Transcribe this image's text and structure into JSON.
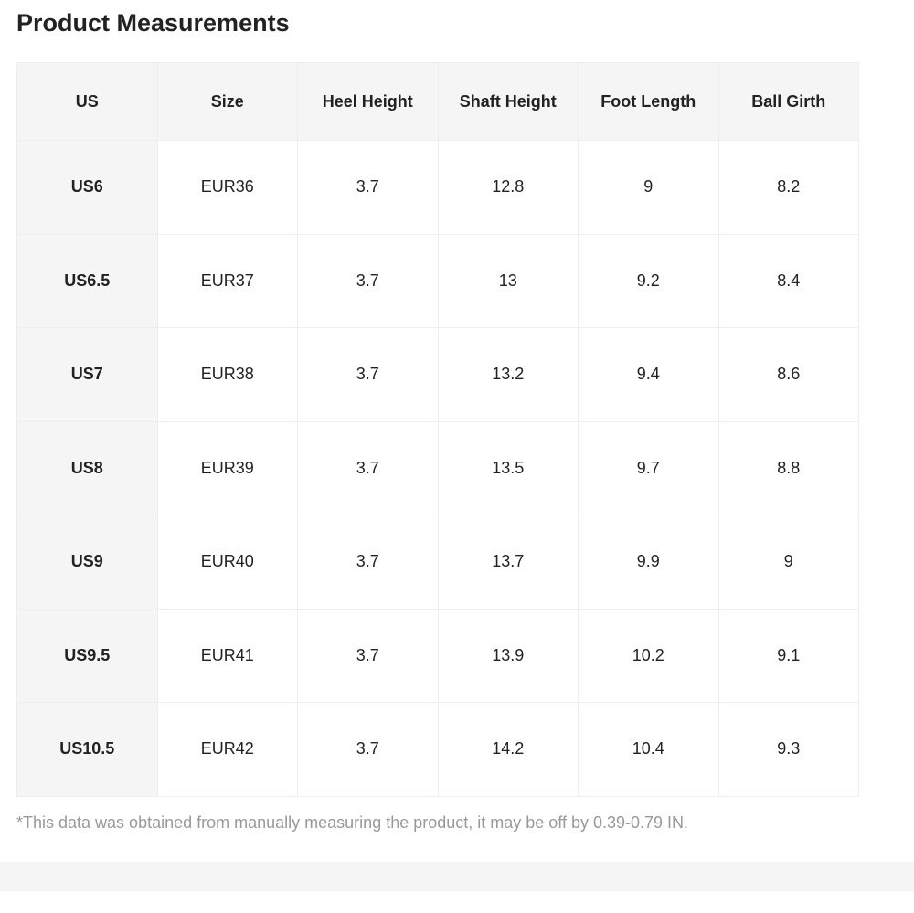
{
  "title": "Product Measurements",
  "table": {
    "header": [
      "US",
      "Size",
      "Heel Height",
      "Shaft Height",
      "Foot Length",
      "Ball Girth"
    ],
    "rows": [
      [
        "US6",
        "EUR36",
        3.7,
        12.8,
        9,
        8.2
      ],
      [
        "US6.5",
        "EUR37",
        3.7,
        13,
        9.2,
        8.4
      ],
      [
        "US7",
        "EUR38",
        3.7,
        13.2,
        9.4,
        8.6
      ],
      [
        "US8",
        "EUR39",
        3.7,
        13.5,
        9.7,
        8.8
      ],
      [
        "US9",
        "EUR40",
        3.7,
        13.7,
        9.9,
        9
      ],
      [
        "US9.5",
        "EUR41",
        3.7,
        13.9,
        10.2,
        9.1
      ],
      [
        "US10.5",
        "EUR42",
        3.7,
        14.2,
        10.4,
        9.3
      ]
    ]
  },
  "note": "*This data was obtained from manually measuring the product, it may be off by 0.39-0.79 IN."
}
